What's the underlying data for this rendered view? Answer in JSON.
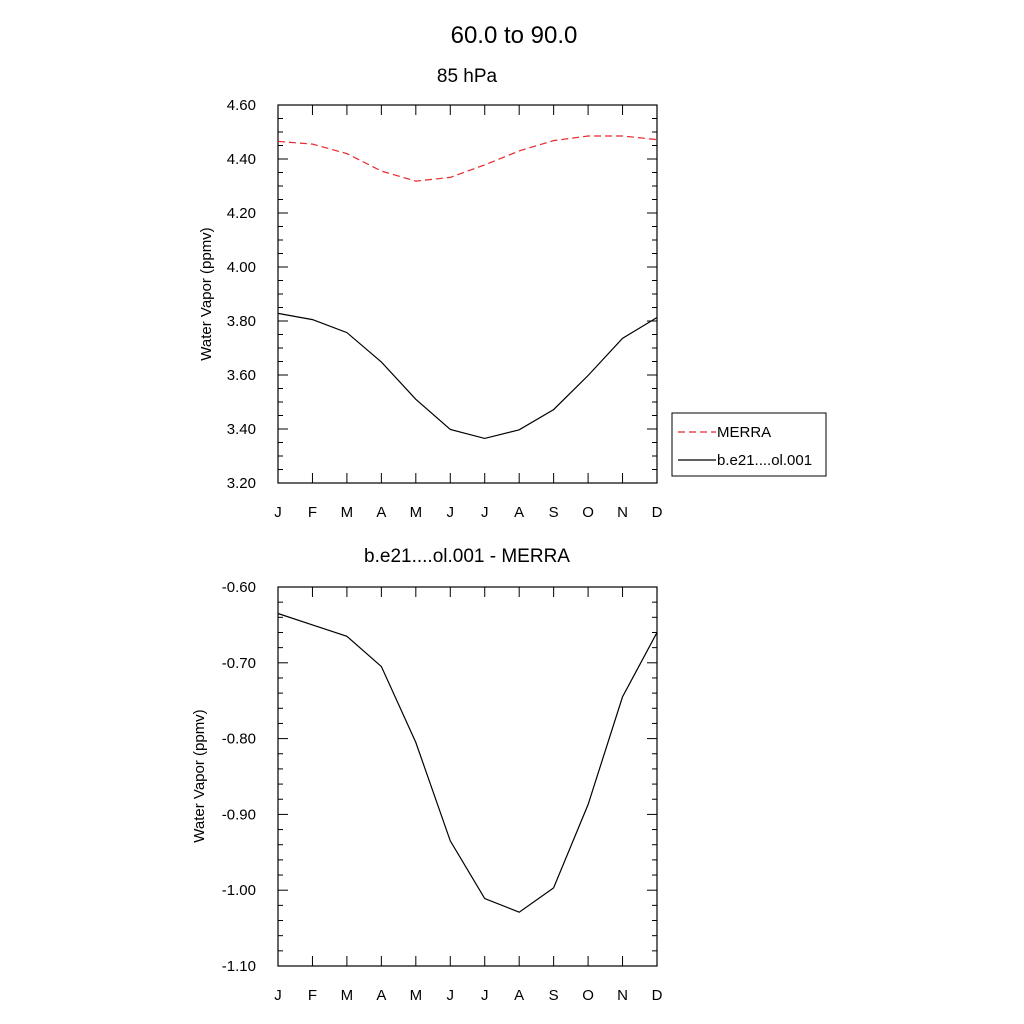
{
  "figure": {
    "title": "60.0 to  90.0"
  },
  "chart_data": [
    {
      "type": "line",
      "title": "85 hPa",
      "xlabel": "",
      "ylabel": "Water Vapor (ppmv)",
      "categories": [
        "J",
        "F",
        "M",
        "A",
        "M",
        "J",
        "J",
        "A",
        "S",
        "O",
        "N",
        "D"
      ],
      "ylim": [
        3.2,
        4.6
      ],
      "yticks": [
        3.2,
        3.4,
        3.6,
        3.8,
        4.0,
        4.2,
        4.4,
        4.6
      ],
      "ytick_labels": [
        "3.20",
        "3.40",
        "3.60",
        "3.80",
        "4.00",
        "4.20",
        "4.40",
        "4.60"
      ],
      "legend_position": "right",
      "series": [
        {
          "name": "MERRA",
          "color": "#e8262b",
          "dash": "dashed",
          "values": [
            4.465,
            4.455,
            4.42,
            4.355,
            4.318,
            4.332,
            4.378,
            4.43,
            4.468,
            4.485,
            4.485,
            4.472
          ]
        },
        {
          "name": "b.e21....ol.001",
          "color": "#000000",
          "dash": "solid",
          "values": [
            3.828,
            3.805,
            3.757,
            3.648,
            3.51,
            3.398,
            3.365,
            3.397,
            3.472,
            3.598,
            3.736,
            3.813
          ]
        }
      ]
    },
    {
      "type": "line",
      "title": "b.e21....ol.001 - MERRA",
      "xlabel": "",
      "ylabel": "Water Vapor (ppmv)",
      "categories": [
        "J",
        "F",
        "M",
        "A",
        "M",
        "J",
        "J",
        "A",
        "S",
        "O",
        "N",
        "D"
      ],
      "ylim": [
        -1.1,
        -0.6
      ],
      "yticks": [
        -1.1,
        -1.0,
        -0.9,
        -0.8,
        -0.7,
        -0.6
      ],
      "ytick_labels": [
        "-1.10",
        "-1.00",
        "-0.90",
        "-0.80",
        "-0.70",
        "-0.60"
      ],
      "series": [
        {
          "color": "#000000",
          "dash": "solid",
          "values": [
            -0.635,
            -0.65,
            -0.665,
            -0.705,
            -0.805,
            -0.935,
            -1.011,
            -1.029,
            -0.997,
            -0.887,
            -0.745,
            -0.66
          ]
        }
      ]
    }
  ]
}
